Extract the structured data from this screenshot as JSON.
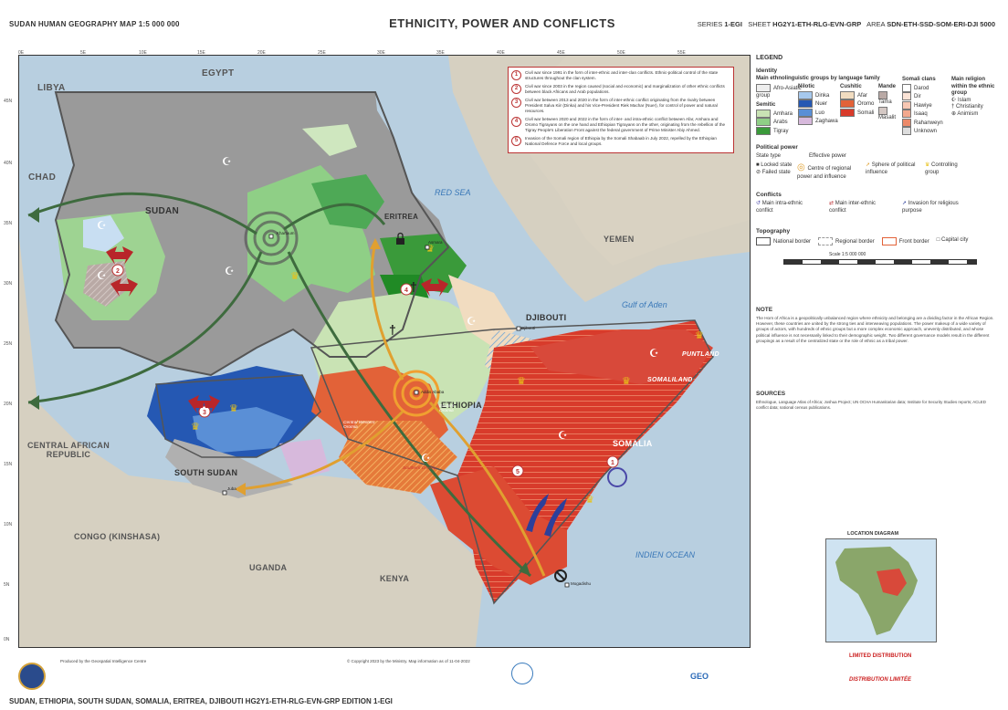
{
  "header": {
    "left": "SUDAN   HUMAN GEOGRAPHY MAP   1:5 000 000",
    "title": "ETHNICITY, POWER AND CONFLICTS",
    "right_series_label": "SERIES",
    "right_series": "1-EGI",
    "right_sheet_label": "SHEET",
    "right_sheet": "HG2Y1-ETH-RLG-EVN-GRP",
    "right_area_label": "AREA",
    "right_area": "SDN-ETH-SSD-SOM-ERI-DJI 5000"
  },
  "map": {
    "countries": [
      "LIBYA",
      "EGYPT",
      "CHAD",
      "SUDAN",
      "ERITREA",
      "YEMEN",
      "DJIBOUTI",
      "PUNTLAND",
      "SOMALILAND",
      "ETHIOPIA",
      "SOMALIA",
      "CENTRAL AFRICAN REPUBLIC",
      "SOUTH SUDAN",
      "CONGO (KINSHASA)",
      "UGANDA",
      "KENYA"
    ],
    "waters": [
      "RED SEA",
      "Gulf of Aden",
      "INDIEN OCEAN"
    ],
    "places": [
      "Khartoum",
      "Asmara",
      "Djibouti",
      "Addis Ababa",
      "Juba",
      "Mogadishu"
    ],
    "regions": [
      "Central Western Oromia",
      "Eastern Oromia",
      "Southern Oromia"
    ],
    "lon_ticks": [
      "0E",
      "5E",
      "10E",
      "15E",
      "20E",
      "25E",
      "30E",
      "35E",
      "40E",
      "45E",
      "50E",
      "55E"
    ],
    "lat_ticks": [
      "45N",
      "40N",
      "35N",
      "30N",
      "25N",
      "20N",
      "15N",
      "10N",
      "5N",
      "0N"
    ]
  },
  "callouts": [
    {
      "n": "1",
      "text": "Civil war since 1991 in the form of inter-ethnic and inter-clan conflicts. Ethnic-political control of the state structures throughout the clan system."
    },
    {
      "n": "2",
      "text": "Civil war since 2003 in the region caused (social and economic) and marginalization of other ethnic conflicts between black Africans and Arab populations."
    },
    {
      "n": "3",
      "text": "Civil war between 2013 and 2020 in the form of inter-ethnic conflict originating from the rivalry between President Salva Kiir (Dinka) and his Vice-President Riek Machar (Nuer), for control of power and natural resources."
    },
    {
      "n": "4",
      "text": "Civil war between 2020 and 2022 in the form of inter- and intra-ethnic conflict between Afar, Amhara and Oromo Tigrayans on the one hand and Ethiopian Tigrayans on the other, originating from the rebellion of the Tigray People's Liberation Front against the federal government of Prime Minister Abiy Ahmed."
    },
    {
      "n": "5",
      "text": "Invasion of the Somali region of Ethiopia by the Somali Shabaab in July 2022, repelled by the Ethiopian National Defence Force and local groups."
    }
  ],
  "legend": {
    "title": "LEGEND",
    "identity": "Identity",
    "ethno_title": "Main ethnolinguistic groups by language family",
    "col1": [
      "Afro-Asiatic group",
      "Semitic",
      "Amhara",
      "Arabs",
      "Tigray"
    ],
    "col2": [
      "Nilotic",
      "Dinka",
      "Nuer",
      "Luo",
      "Zaghawa"
    ],
    "col3": [
      "Cushitic",
      "Afar",
      "Oromo",
      "Somali"
    ],
    "col4": [
      "Mande",
      "Tama",
      "Masalit"
    ],
    "somali_title": "Somali clans",
    "somali": [
      "Darod",
      "Dir",
      "Hawiye",
      "Isaaq",
      "Rahanweyn",
      "Unknown"
    ],
    "religion_title": "Main religion within the ethnic group",
    "religion": [
      "Islam",
      "Christianity",
      "Animism"
    ],
    "power_title": "Political power",
    "power_state": "State type",
    "power_effective": "Effective power",
    "power_items": [
      "Locked state",
      "Failed state",
      "Centre of regional power and influence",
      "Sphere of political influence",
      "Controlling group"
    ],
    "conflicts_title": "Conflicts",
    "conflicts": [
      "Main intra-ethnic conflict",
      "Main inter-ethnic conflict",
      "Invasion for religious purpose"
    ],
    "topo_title": "Topography",
    "topo": [
      "National border",
      "Regional border",
      "Front border",
      "Capital city"
    ],
    "scale": "Scale 1:5 000 000",
    "note_title": "NOTE",
    "note": "The Horn of Africa is a geopolitically unbalanced region where ethnicity and belonging are a dividing factor in the African Region. However, these countries are united by the strong ties and interweaving populations. The power makeup of a wide variety of groups of actors, with hundreds of ethnic groups but a more complex economic approach, unevenly distributed, and whose political influence is not necessarily linked to their demographic weight. Two different governance models result in the different groupings as a result of the centralized state or the role of ethnic as a tribal power.",
    "sources_title": "SOURCES",
    "sources": "Ethnologue, Language Atlas of Africa; Joshua Project; UN OCHA Humanitarian data; Institute for Security Studies reports; ACLED conflict data; national census publications.",
    "location_title": "LOCATION DIAGRAM",
    "limited_title": "LIMITED DISTRIBUTION",
    "limited_sub": "DISTRIBUTION LIMITÉE"
  },
  "footer": {
    "code": "SUDAN, ETHIOPIA, SOUTH SUDAN, SOMALIA, ERITREA, DJIBOUTI   HG2Y1-ETH-RLG-EVN-GRP   EDITION 1-EGI",
    "produced": "Produced by the Geospatial Intelligence Centre",
    "copyright": "© Copyright 2023 by the Ministry. Map information as of 11-04-2022"
  },
  "colors": {
    "sudan_gray": "#9a9a9a",
    "green": "#8fcf86",
    "light_green": "#c9e3b4",
    "blue": "#2558b3",
    "orange": "#e26238",
    "red": "#d83b2b",
    "beige": "#f1dcc0",
    "water": "#b8cfe0",
    "land": "#d8d2c4"
  }
}
